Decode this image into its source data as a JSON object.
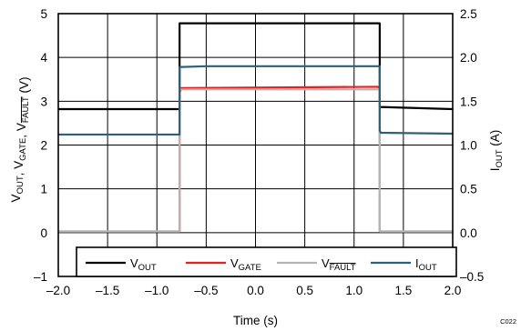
{
  "chart_data": {
    "type": "line",
    "xlabel": "Time (s)",
    "ylabel_left": {
      "parts": [
        {
          "main": "V",
          "sub": "OUT",
          "over": false
        },
        {
          "main": ", V",
          "sub": "GATE",
          "over": false
        },
        {
          "main": ", V",
          "sub": "FAULT",
          "over": true
        },
        {
          "main": " (V)",
          "sub": "",
          "over": false
        }
      ]
    },
    "ylabel_right": {
      "main": "I",
      "sub": "OUT",
      "suffix": " (A)"
    },
    "xlim": [
      -2.0,
      2.0
    ],
    "ylim_left": [
      -1,
      5
    ],
    "ylim_right": [
      -0.5,
      2.5
    ],
    "x_ticks": [
      "–2.0",
      "–1.5",
      "–1.0",
      "–0.5",
      "0.0",
      "0.5",
      "1.0",
      "1.5",
      "2.0"
    ],
    "x_tick_values": [
      -2.0,
      -1.5,
      -1.0,
      -0.5,
      0.0,
      0.5,
      1.0,
      1.5,
      2.0
    ],
    "y_left_ticks": [
      "–1",
      "0",
      "1",
      "2",
      "3",
      "4",
      "5"
    ],
    "y_left_tick_values": [
      -1,
      0,
      1,
      2,
      3,
      4,
      5
    ],
    "y_right_ticks": [
      "–0.5",
      "0.0",
      "0.5",
      "1.0",
      "1.5",
      "2.0",
      "2.5"
    ],
    "y_right_tick_values": [
      -0.5,
      0.0,
      0.5,
      1.0,
      1.5,
      2.0,
      2.5
    ],
    "grid": true,
    "legend_position": "bottom",
    "figure_code": "C022",
    "series": [
      {
        "key": "vout",
        "legend": {
          "main": "V",
          "sub": "OUT",
          "over": false
        },
        "color": "#000000",
        "axis": "left",
        "x": [
          -2.0,
          -0.77,
          -0.77,
          1.26,
          1.26,
          2.0
        ],
        "y": [
          2.82,
          2.82,
          4.78,
          4.78,
          2.87,
          2.82
        ]
      },
      {
        "key": "vgate",
        "legend": {
          "main": "V",
          "sub": "GATE",
          "over": false
        },
        "color": "#e8201f",
        "axis": "left",
        "x": [
          -2.0,
          -0.77,
          -0.77,
          -0.75,
          1.24,
          1.26,
          1.26,
          2.0
        ],
        "y": [
          0.02,
          0.02,
          3.2,
          3.3,
          3.33,
          3.3,
          0.02,
          0.02
        ]
      },
      {
        "key": "vfault",
        "legend": {
          "main": "V",
          "sub": "FAULT",
          "over": true
        },
        "color": "#b4b4b4",
        "axis": "left",
        "x": [
          -2.0,
          -0.77,
          -0.77,
          1.26,
          1.26,
          2.0
        ],
        "y": [
          0.03,
          0.03,
          3.27,
          3.27,
          0.03,
          0.03
        ]
      },
      {
        "key": "iout",
        "legend": {
          "main": "I",
          "sub": "OUT",
          "over": false
        },
        "color": "#2d6177",
        "axis": "right",
        "x": [
          -2.0,
          -0.77,
          -0.77,
          -0.5,
          1.26,
          1.26,
          1.27,
          2.0
        ],
        "y": [
          1.12,
          1.12,
          1.89,
          1.9,
          1.9,
          1.17,
          1.14,
          1.13
        ]
      }
    ]
  }
}
